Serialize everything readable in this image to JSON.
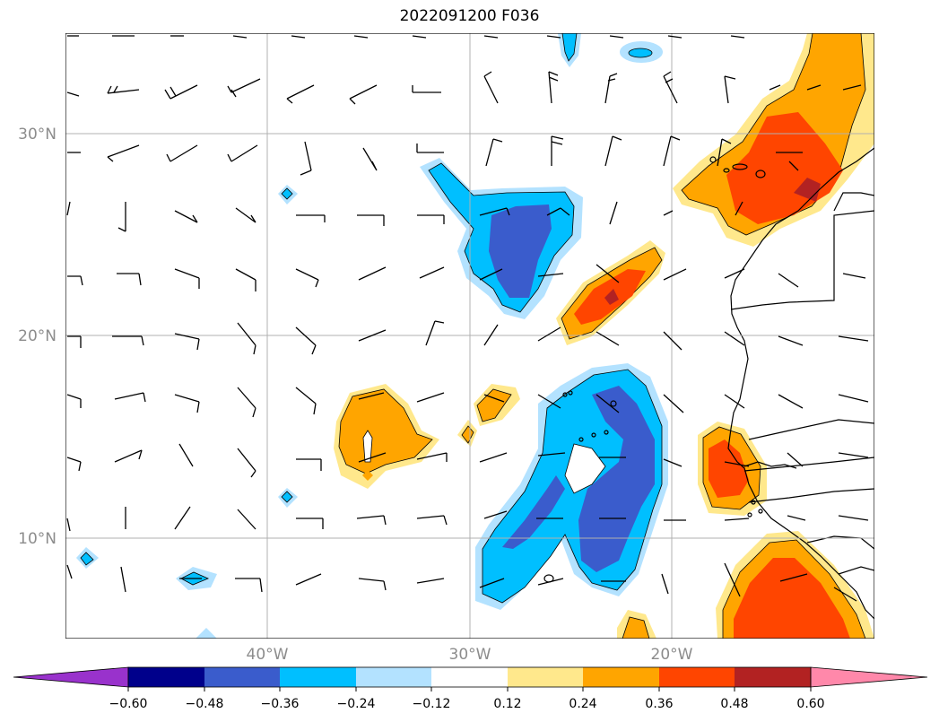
{
  "title": "2022091200 F036",
  "lat_labels": [
    "30°N",
    "20°N",
    "10°N"
  ],
  "lon_labels": [
    "40°W",
    "30°W",
    "20°W"
  ],
  "colorbar": {
    "ticks": [
      "−0.60",
      "−0.48",
      "−0.36",
      "−0.24",
      "−0.12",
      "0.12",
      "0.24",
      "0.36",
      "0.48",
      "0.60"
    ],
    "colors": [
      "#9932cc",
      "#00008b",
      "#3a5ccc",
      "#00bfff",
      "#b3e2ff",
      "#ffffff",
      "#ffe88c",
      "#ffa500",
      "#ff4500",
      "#b22222",
      "#ff88aa"
    ]
  },
  "map": {
    "lon_range": [
      -50,
      -10
    ],
    "lat_range": [
      5,
      35
    ],
    "gridlines": true,
    "barbs": "wind barbs over the domain",
    "coastlines": "West African coast, Canary Islands, Cape Verde"
  }
}
